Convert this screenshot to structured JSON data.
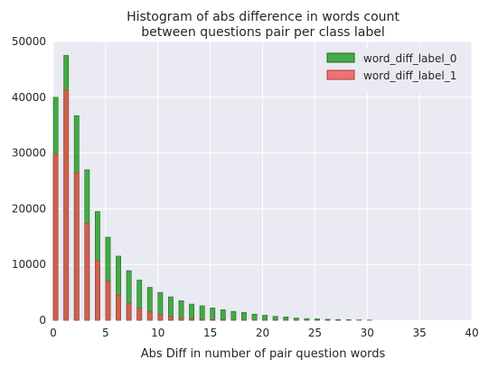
{
  "chart_data": {
    "type": "bar",
    "title_line1": "Histogram of abs difference in words count",
    "title_line2": "between questions pair per class label",
    "xlabel": "Abs Diff in number of pair question words",
    "ylabel": "",
    "xlim": [
      0,
      40
    ],
    "ylim": [
      0,
      50000
    ],
    "xticks": [
      "0",
      "5",
      "10",
      "15",
      "20",
      "25",
      "30",
      "35",
      "40"
    ],
    "yticks": [
      "0",
      "10000",
      "20000",
      "30000",
      "40000",
      "50000"
    ],
    "grid": true,
    "legend_position": "top-right",
    "bar_width": 0.45,
    "x": [
      0,
      1,
      2,
      3,
      4,
      5,
      6,
      7,
      8,
      9,
      10,
      11,
      12,
      13,
      14,
      15,
      16,
      17,
      18,
      19,
      20,
      21,
      22,
      23,
      24,
      25,
      26,
      27,
      28,
      29,
      30
    ],
    "series": [
      {
        "name": "word_diff_label_0",
        "color": "#2ca02c",
        "values": [
          40000,
          47500,
          36700,
          27000,
          19500,
          14900,
          11500,
          8900,
          7200,
          5900,
          5000,
          4200,
          3500,
          2900,
          2600,
          2200,
          1900,
          1600,
          1400,
          1100,
          900,
          700,
          600,
          400,
          300,
          250,
          180,
          130,
          100,
          70,
          40
        ]
      },
      {
        "name": "word_diff_label_1",
        "color": "#f05050",
        "values": [
          29800,
          41300,
          26500,
          17400,
          10700,
          7000,
          4500,
          3000,
          2200,
          1500,
          1000,
          700,
          400,
          250,
          180,
          120,
          80,
          50,
          30,
          20,
          15,
          10,
          8,
          5,
          3,
          2,
          1,
          1,
          0,
          0,
          0
        ]
      }
    ]
  }
}
